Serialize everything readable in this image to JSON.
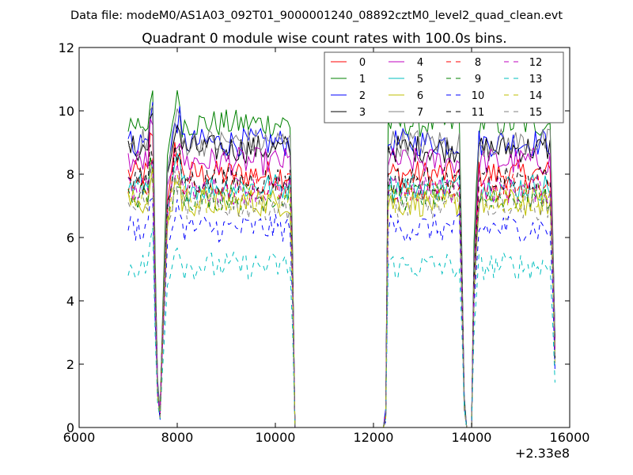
{
  "chart_data": {
    "type": "line",
    "suptitle": "Data file: modeM0/AS1A03_092T01_9000001240_08892cztM0_level2_quad_clean.evt",
    "title": "Quadrant 0 module wise count rates with 100.0s bins.",
    "xlabel": "",
    "ylabel": "",
    "xlim": [
      6000,
      16000
    ],
    "ylim": [
      0,
      12
    ],
    "x_offset_label": "+2.33e8",
    "xticks": [
      6000,
      8000,
      10000,
      12000,
      14000,
      16000
    ],
    "xtick_labels": [
      "6000",
      "8000",
      "10000",
      "12000",
      "14000",
      "16000"
    ],
    "yticks": [
      0,
      2,
      4,
      6,
      8,
      10,
      12
    ],
    "ytick_labels": [
      "0",
      "2",
      "4",
      "6",
      "8",
      "10",
      "12"
    ],
    "grid": false,
    "legend_position": "top-right",
    "profile_x": [
      7000,
      7100,
      7200,
      7300,
      7400,
      7500,
      7550,
      7600,
      7650,
      7700,
      7800,
      7900,
      8000,
      10300,
      10350,
      10400,
      12200,
      12250,
      12300,
      13750,
      13800,
      13850,
      13900,
      14000,
      14050,
      14150,
      14200,
      14300,
      15600,
      15650,
      15700
    ],
    "profile_shape": [
      1,
      1,
      1,
      1,
      1,
      1,
      0.55,
      0.15,
      0.05,
      0.35,
      0.9,
      1,
      1,
      1,
      0.6,
      0,
      0,
      0.05,
      1,
      1,
      0.6,
      0.1,
      0,
      0,
      0.6,
      1,
      1,
      1,
      1,
      0.7,
      0.3
    ],
    "series": [
      {
        "name": "0",
        "level": 8.0,
        "color": "#ff0000",
        "dash": "solid"
      },
      {
        "name": "1",
        "level": 9.6,
        "color": "#008000",
        "dash": "solid"
      },
      {
        "name": "2",
        "level": 9.0,
        "color": "#0000ff",
        "dash": "solid"
      },
      {
        "name": "3",
        "level": 8.8,
        "color": "#000000",
        "dash": "solid"
      },
      {
        "name": "4",
        "level": 8.4,
        "color": "#bf00bf",
        "dash": "solid"
      },
      {
        "name": "5",
        "level": 7.6,
        "color": "#00bfbf",
        "dash": "solid"
      },
      {
        "name": "6",
        "level": 7.1,
        "color": "#bfbf00",
        "dash": "solid"
      },
      {
        "name": "7",
        "level": 9.0,
        "color": "#808080",
        "dash": "solid"
      },
      {
        "name": "8",
        "level": 7.6,
        "color": "#ff0000",
        "dash": "dashed"
      },
      {
        "name": "9",
        "level": 7.3,
        "color": "#008000",
        "dash": "dashed"
      },
      {
        "name": "10",
        "level": 6.3,
        "color": "#0000ff",
        "dash": "dashed"
      },
      {
        "name": "11",
        "level": 7.8,
        "color": "#000000",
        "dash": "dashed"
      },
      {
        "name": "12",
        "level": 7.5,
        "color": "#bf00bf",
        "dash": "dashed"
      },
      {
        "name": "13",
        "level": 5.1,
        "color": "#00bfbf",
        "dash": "dashed"
      },
      {
        "name": "14",
        "level": 7.2,
        "color": "#bfbf00",
        "dash": "dashed"
      },
      {
        "name": "15",
        "level": 7.0,
        "color": "#808080",
        "dash": "dashed"
      }
    ]
  }
}
